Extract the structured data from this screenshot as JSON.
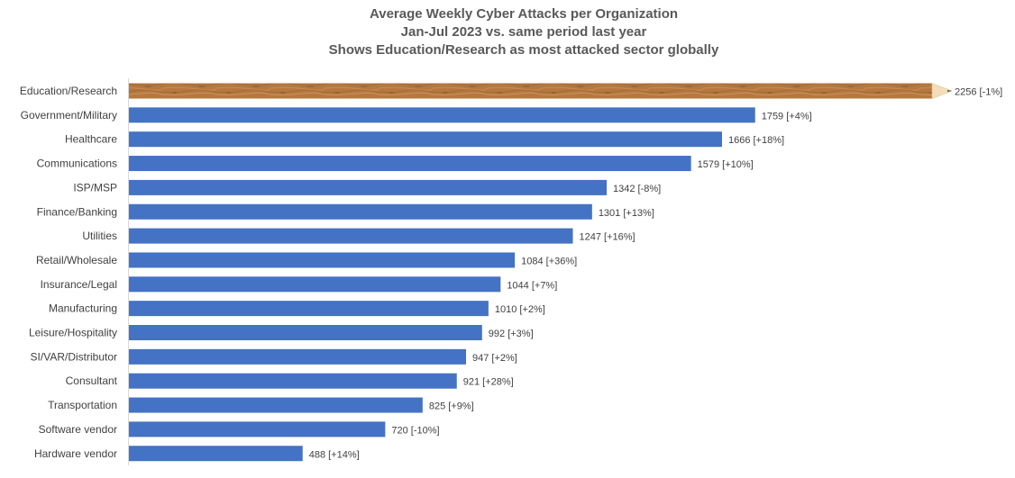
{
  "chart_data": {
    "type": "bar",
    "orientation": "horizontal",
    "title": [
      "Average Weekly Cyber Attacks per Organization",
      "Jan-Jul 2023 vs. same period last year",
      "Shows Education/Research as most attacked sector globally"
    ],
    "categories": [
      "Education/Research",
      "Government/Military",
      "Healthcare",
      "Communications",
      "ISP/MSP",
      "Finance/Banking",
      "Utilities",
      "Retail/Wholesale",
      "Insurance/Legal",
      "Manufacturing",
      "Leisure/Hospitality",
      "SI/VAR/Distributor",
      "Consultant",
      "Transportation",
      "Software vendor",
      "Hardware vendor"
    ],
    "values": [
      2256,
      1759,
      1666,
      1579,
      1342,
      1301,
      1247,
      1084,
      1044,
      1010,
      992,
      947,
      921,
      825,
      720,
      488
    ],
    "data_labels": [
      "2256 [-1%]",
      "1759 [+4%]",
      "1666 [+18%]",
      "1579 [+10%]",
      "1342 [-8%]",
      "1301 [+13%]",
      "1247 [+16%]",
      "1084 [+36%]",
      "1044 [+7%]",
      "1010 [+2%]",
      "992 [+3%]",
      "947 [+2%]",
      "921 [+28%]",
      "825 [+9%]",
      "720 [-10%]",
      "488 [+14%]"
    ],
    "highlight_category": "Education/Research",
    "highlight_style": "pencil",
    "colors": {
      "bar": "#4472C4",
      "pencil_wood": "#B5783F",
      "pencil_tip": "#F3DDB8",
      "text": "#404040",
      "title": "#595959",
      "axis": "#D9D9D9"
    },
    "xlim": [
      0,
      2256
    ]
  }
}
